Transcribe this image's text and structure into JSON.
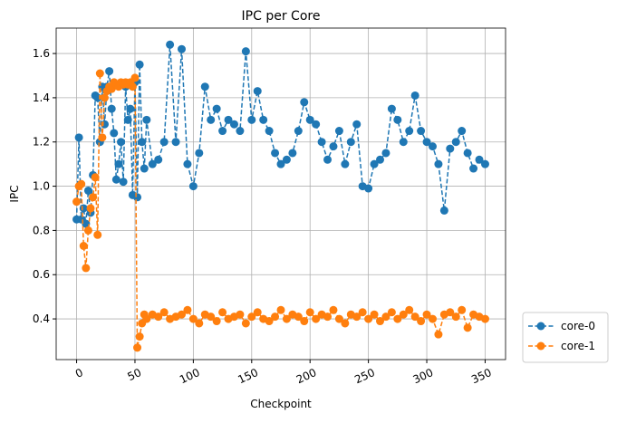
{
  "chart_data": {
    "type": "line",
    "title": "IPC per Core",
    "xlabel": "Checkpoint",
    "ylabel": "IPC",
    "x": [
      0,
      2,
      4,
      6,
      8,
      10,
      12,
      14,
      16,
      18,
      20,
      22,
      24,
      26,
      28,
      30,
      32,
      34,
      36,
      38,
      40,
      42,
      44,
      46,
      48,
      50,
      52,
      54,
      56,
      58,
      60,
      65,
      70,
      75,
      80,
      85,
      90,
      95,
      100,
      105,
      110,
      115,
      120,
      125,
      130,
      135,
      140,
      145,
      150,
      155,
      160,
      165,
      170,
      175,
      180,
      185,
      190,
      195,
      200,
      205,
      210,
      215,
      220,
      225,
      230,
      235,
      240,
      245,
      250,
      255,
      260,
      265,
      270,
      275,
      280,
      285,
      290,
      295,
      300,
      305,
      310,
      315,
      320,
      325,
      330,
      335,
      340,
      345,
      350
    ],
    "series": [
      {
        "name": "core-0",
        "color": "#1f77b4",
        "values": [
          0.85,
          1.22,
          0.85,
          0.9,
          0.83,
          0.98,
          0.88,
          1.05,
          1.41,
          1.4,
          1.2,
          1.45,
          1.28,
          1.45,
          1.52,
          1.35,
          1.24,
          1.03,
          1.1,
          1.2,
          1.02,
          1.45,
          1.3,
          1.35,
          0.96,
          1.47,
          0.95,
          1.55,
          1.2,
          1.08,
          1.3,
          1.1,
          1.12,
          1.2,
          1.64,
          1.2,
          1.62,
          1.1,
          1.0,
          1.15,
          1.45,
          1.3,
          1.35,
          1.25,
          1.3,
          1.28,
          1.25,
          1.61,
          1.3,
          1.43,
          1.3,
          1.25,
          1.15,
          1.1,
          1.12,
          1.15,
          1.25,
          1.38,
          1.3,
          1.28,
          1.2,
          1.12,
          1.18,
          1.25,
          1.1,
          1.2,
          1.28,
          1.0,
          0.99,
          1.1,
          1.12,
          1.15,
          1.35,
          1.3,
          1.2,
          1.25,
          1.41,
          1.25,
          1.2,
          1.18,
          1.1,
          0.89,
          1.17,
          1.2,
          1.25,
          1.15,
          1.08,
          1.12,
          1.1
        ]
      },
      {
        "name": "core-1",
        "color": "#ff7f0e",
        "values": [
          0.93,
          1.0,
          1.01,
          0.73,
          0.63,
          0.8,
          0.9,
          0.95,
          1.04,
          0.78,
          1.51,
          1.22,
          1.4,
          1.43,
          1.45,
          1.44,
          1.47,
          1.46,
          1.45,
          1.47,
          1.46,
          1.47,
          1.46,
          1.47,
          1.45,
          1.49,
          0.27,
          0.32,
          0.38,
          0.42,
          0.4,
          0.42,
          0.41,
          0.43,
          0.4,
          0.41,
          0.42,
          0.44,
          0.4,
          0.38,
          0.42,
          0.41,
          0.39,
          0.43,
          0.4,
          0.41,
          0.42,
          0.38,
          0.41,
          0.43,
          0.4,
          0.39,
          0.41,
          0.44,
          0.4,
          0.42,
          0.41,
          0.39,
          0.43,
          0.4,
          0.42,
          0.41,
          0.44,
          0.4,
          0.38,
          0.42,
          0.41,
          0.43,
          0.4,
          0.42,
          0.39,
          0.41,
          0.43,
          0.4,
          0.42,
          0.44,
          0.41,
          0.39,
          0.42,
          0.4,
          0.33,
          0.42,
          0.43,
          0.41,
          0.44,
          0.36,
          0.42,
          0.41,
          0.4
        ]
      }
    ],
    "xlim": [
      -17.5,
      367.5
    ],
    "ylim": [
      0.216,
      1.715
    ],
    "xticks": [
      0,
      50,
      100,
      150,
      200,
      250,
      300,
      350
    ],
    "yticks": [
      0.4,
      0.6,
      0.8,
      {
        "value": 1,
        "label": "1.0"
      },
      1.2,
      1.4,
      1.6
    ],
    "grid": true,
    "legend": "outside lower right"
  }
}
